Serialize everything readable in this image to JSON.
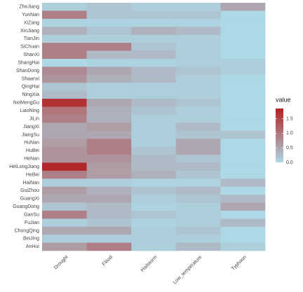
{
  "chart_data": {
    "type": "heatmap",
    "rows": [
      "ZheJiang",
      "YunNan",
      "XiZang",
      "XinJiang",
      "TianJin",
      "SiChuan",
      "ShanXi",
      "ShangHai",
      "ShanDong",
      "Shaanxi",
      "QingHai",
      "NingXia",
      "NeiMengGu",
      "LiaoNing",
      "JiLin",
      "JiangXi",
      "JiangSu",
      "HuNan",
      "HuBei",
      "HeNan",
      "HeiLongJiang",
      "HeBei",
      "HaiNan",
      "GuiZhou",
      "GuangXi",
      "GuangDong",
      "GanSu",
      "FuJian",
      "ChongQing",
      "BeiJing",
      "AnHui"
    ],
    "columns": [
      "Drought",
      "Flood",
      "Hailstorm",
      "Low_temperature",
      "Typhoon"
    ],
    "values": [
      [
        0.1,
        0.2,
        0.1,
        0.1,
        0.5
      ],
      [
        0.9,
        0.2,
        0.2,
        0.2,
        0.0
      ],
      [
        0.05,
        0.05,
        0.05,
        0.05,
        0.0
      ],
      [
        0.4,
        0.2,
        0.4,
        0.3,
        0.0
      ],
      [
        0.1,
        0.1,
        0.1,
        0.1,
        0.0
      ],
      [
        0.9,
        0.9,
        0.2,
        0.1,
        0.0
      ],
      [
        0.9,
        0.3,
        0.3,
        0.1,
        0.0
      ],
      [
        0.0,
        0.05,
        0.05,
        0.1,
        0.1
      ],
      [
        0.8,
        0.5,
        0.3,
        0.2,
        0.1
      ],
      [
        0.7,
        0.4,
        0.3,
        0.1,
        0.0
      ],
      [
        0.2,
        0.1,
        0.1,
        0.1,
        0.0
      ],
      [
        0.3,
        0.1,
        0.1,
        0.1,
        0.0
      ],
      [
        1.7,
        0.5,
        0.3,
        0.2,
        0.0
      ],
      [
        1.0,
        0.4,
        0.2,
        0.1,
        0.0
      ],
      [
        0.9,
        0.4,
        0.1,
        0.1,
        0.0
      ],
      [
        0.5,
        0.6,
        0.1,
        0.3,
        0.0
      ],
      [
        0.5,
        0.5,
        0.1,
        0.2,
        0.2
      ],
      [
        0.6,
        0.9,
        0.1,
        0.5,
        0.0
      ],
      [
        0.7,
        0.9,
        0.2,
        0.5,
        0.0
      ],
      [
        0.7,
        0.7,
        0.3,
        0.2,
        0.0
      ],
      [
        1.8,
        0.6,
        0.3,
        0.3,
        0.0
      ],
      [
        0.9,
        0.6,
        0.4,
        0.2,
        0.0
      ],
      [
        0.1,
        0.1,
        0.05,
        0.05,
        0.3
      ],
      [
        0.6,
        0.4,
        0.2,
        0.3,
        0.0
      ],
      [
        0.5,
        0.5,
        0.1,
        0.2,
        0.3
      ],
      [
        0.2,
        0.3,
        0.05,
        0.1,
        0.5
      ],
      [
        0.9,
        0.3,
        0.2,
        0.1,
        0.0
      ],
      [
        0.1,
        0.2,
        0.05,
        0.1,
        0.3
      ],
      [
        0.5,
        0.5,
        0.1,
        0.2,
        0.0
      ],
      [
        0.1,
        0.1,
        0.1,
        0.1,
        0.0
      ],
      [
        0.6,
        0.9,
        0.1,
        0.3,
        0.1
      ]
    ],
    "colorscale": [
      "#add8e6",
      "#b22222"
    ],
    "clim": [
      0,
      1.85
    ],
    "legend_title": "value",
    "cticks": [
      {
        "value": 0,
        "label": "0.0"
      },
      0.5,
      {
        "value": 1,
        "label": "1.0"
      },
      1.5
    ]
  }
}
